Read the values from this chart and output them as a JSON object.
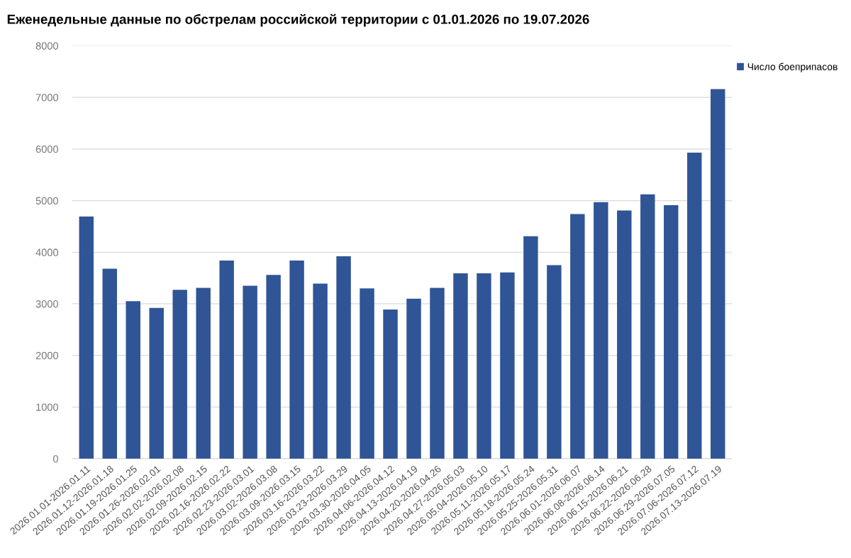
{
  "chart_data": {
    "type": "bar",
    "title": "Еженедельные данные по обстрелам российской территории с 01.01.2026 по 19.07.2026",
    "categories": [
      "2026.01.01-2026.01.11",
      "2026.01.12-2026.01.18",
      "2026.01.19-2026.01.25",
      "2026.01.26-2026.02.01",
      "2026.02.02-2026.02.08",
      "2026.02.09-2026.02.15",
      "2026.02.16-2026.02.22",
      "2026.02.23-2026.03.01",
      "2026.03.02-2026.03.08",
      "2026.03.09-2026.03.15",
      "2026.03.16-2026.03.22",
      "2026.03.23-2026.03.29",
      "2026.03.30-2026.04.05",
      "2026.04.06-2026.04.12",
      "2026.04.13-2026.04.19",
      "2026.04.20-2026.04.26",
      "2026.04.27-2026.05.03",
      "2026.05.04-2026.05.10",
      "2026.05.11-2026.05.17",
      "2026.05.18-2026.05.24",
      "2026.05.25-2026.05.31",
      "2026.06.01-2026.06.07",
      "2026.06.08-2026.06.14",
      "2026.06.15-2026.06.21",
      "2026.06.22-2026.06.28",
      "2026.06.29-2026.07.05",
      "2026.07.06-2026.07.12",
      "2026.07.13-2026.07.19"
    ],
    "series": [
      {
        "name": "Число боеприпасов",
        "color": "#2f5597",
        "values": [
          4690,
          3680,
          3050,
          2920,
          3270,
          3310,
          3840,
          3350,
          3560,
          3840,
          3390,
          3920,
          3300,
          2890,
          3100,
          3310,
          3590,
          3590,
          3610,
          4310,
          3750,
          4740,
          4970,
          4810,
          5120,
          4910,
          5930,
          7160
        ]
      }
    ],
    "ylim": [
      0,
      8000
    ],
    "yticks": [
      0,
      1000,
      2000,
      3000,
      4000,
      5000,
      6000,
      7000,
      8000
    ],
    "grid": "y",
    "legend": "top right"
  }
}
